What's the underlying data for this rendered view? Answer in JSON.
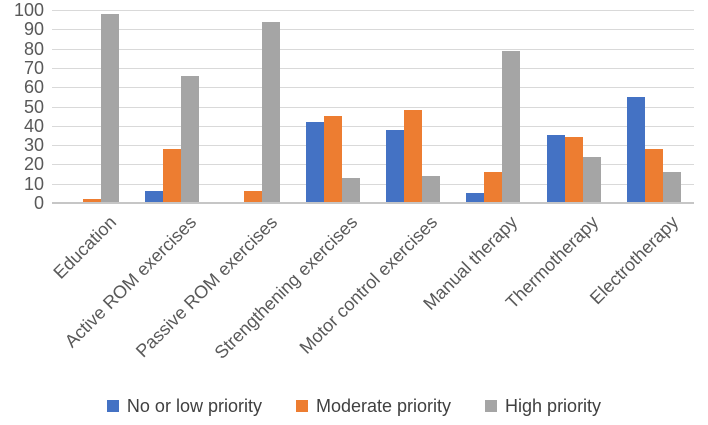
{
  "figure": {
    "background": "#FFFFFF",
    "axis_text_color": "#595959",
    "legend_text_color": "#404040",
    "gridline_color": "#D9D9D9",
    "axis_line_color": "#C6C6C6"
  },
  "chart_data": {
    "type": "bar",
    "title": "",
    "xlabel": "",
    "ylabel": "",
    "categories": [
      "Education",
      "Active ROM exercises",
      "Passive ROM exercises",
      "Strengthening exercises",
      "Motor control exercises",
      "Manual therapy",
      "Thermotherapy",
      "Electrotherapy"
    ],
    "series": [
      {
        "name": "No or low priority",
        "color": "#4472C4",
        "values": [
          0,
          6,
          0,
          42,
          38,
          5,
          35,
          55
        ]
      },
      {
        "name": "Moderate priority",
        "color": "#ED7D31",
        "values": [
          2,
          28,
          6,
          45,
          48,
          16,
          34,
          28
        ]
      },
      {
        "name": "High priority",
        "color": "#A5A5A5",
        "values": [
          98,
          66,
          94,
          13,
          14,
          79,
          24,
          16
        ]
      }
    ],
    "y_axis": {
      "min": 0,
      "max": 100,
      "step": 10,
      "tick_labels": [
        "0",
        "10",
        "20",
        "30",
        "40",
        "50",
        "60",
        "70",
        "80",
        "90",
        "100"
      ]
    },
    "grid": true,
    "legend_position": "bottom"
  }
}
